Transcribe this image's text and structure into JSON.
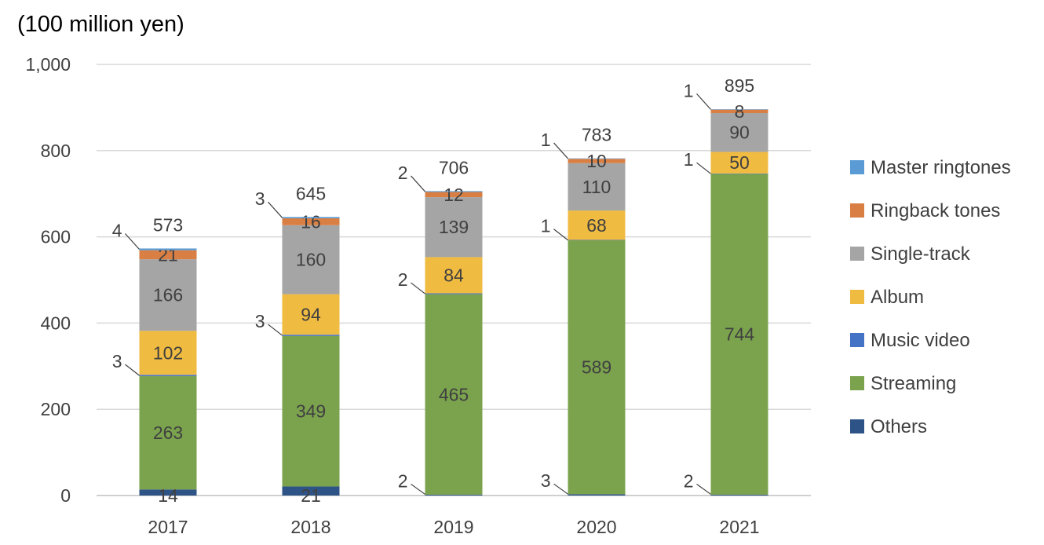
{
  "chart_data": {
    "type": "bar",
    "stacked": true,
    "ylabel": "(100 million yen)",
    "ylim": [
      0,
      1000
    ],
    "yticks": [
      "0",
      "200",
      "400",
      "600",
      "800",
      "1,000"
    ],
    "ytick_values": [
      0,
      200,
      400,
      600,
      800,
      1000
    ],
    "grid": true,
    "legend_position": "right",
    "categories": [
      "2017",
      "2018",
      "2019",
      "2020",
      "2021"
    ],
    "series": [
      {
        "name": "Others",
        "color": "#2E5487",
        "values": [
          14,
          21,
          2,
          3,
          2
        ],
        "labels": [
          "14",
          "21",
          "2",
          "3",
          "2"
        ]
      },
      {
        "name": "Streaming",
        "color": "#7BA34E",
        "values": [
          263,
          349,
          465,
          589,
          744
        ],
        "labels": [
          "263",
          "349",
          "465",
          "589",
          "744"
        ]
      },
      {
        "name": "Music video",
        "color": "#4472C4",
        "values": [
          3,
          3,
          2,
          1,
          1
        ],
        "labels": [
          "3",
          "3",
          "2",
          "1",
          "1"
        ]
      },
      {
        "name": "Album",
        "color": "#F0BB41",
        "values": [
          102,
          94,
          84,
          68,
          50
        ],
        "labels": [
          "102",
          "94",
          "84",
          "68",
          "50"
        ]
      },
      {
        "name": "Single-track",
        "color": "#A5A5A5",
        "values": [
          166,
          160,
          139,
          110,
          90
        ],
        "labels": [
          "166",
          "160",
          "139",
          "110",
          "90"
        ]
      },
      {
        "name": "Ringback tones",
        "color": "#DA7F43",
        "values": [
          21,
          16,
          12,
          10,
          8
        ],
        "labels": [
          "21",
          "16",
          "12",
          "10",
          "8"
        ]
      },
      {
        "name": "Master ringtones",
        "color": "#5B9BD5",
        "values": [
          4,
          3,
          2,
          1,
          1
        ],
        "labels": [
          "4",
          "3",
          "2",
          "1",
          "1"
        ]
      }
    ],
    "totals": [
      "573",
      "645",
      "706",
      "783",
      "895"
    ],
    "legend_order": [
      "Master ringtones",
      "Ringback tones",
      "Single-track",
      "Album",
      "Music video",
      "Streaming",
      "Others"
    ]
  }
}
